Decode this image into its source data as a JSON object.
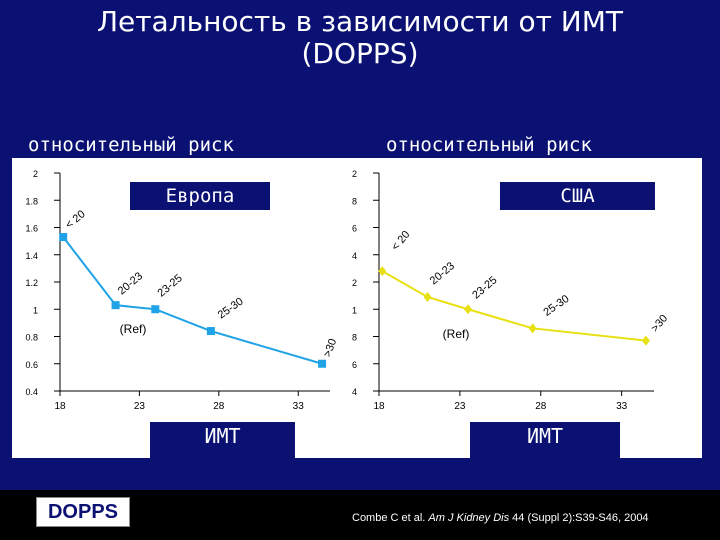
{
  "title_line1": "Летальность в зависимости от ИМТ",
  "title_line2": "(DOPPS)",
  "footer": {
    "logo": "DOPPS",
    "citation_pre": "Combe C et al. ",
    "citation_journal": "Am J Kidney Dis",
    "citation_post": " 44 (Suppl 2):S39-S46, 2004"
  },
  "chart_data": [
    {
      "type": "line",
      "region": "Европа",
      "ylabel": "относительный риск",
      "xlabel": "ИМТ",
      "ylim": [
        0.4,
        2
      ],
      "xlim": [
        18,
        35
      ],
      "x_ticks": [
        "18",
        "23",
        "28",
        "33"
      ],
      "y_ticks": [
        "0.4",
        "0.6",
        "0.8",
        "1",
        "1.2",
        "1.4",
        "1.6",
        "1.8",
        "2"
      ],
      "series": [
        {
          "color": "#1fa3e6",
          "marker": "square",
          "points": [
            {
              "x": 18.2,
              "y": 1.53,
              "label": "< 20"
            },
            {
              "x": 21.5,
              "y": 1.03,
              "label": "20-23"
            },
            {
              "x": 24.0,
              "y": 1.0,
              "label": "23-25"
            },
            {
              "x": 27.5,
              "y": 0.84,
              "label": "25-30"
            },
            {
              "x": 34.5,
              "y": 0.6,
              "label": ">30"
            }
          ]
        }
      ],
      "annotations": [
        "(Ref)"
      ]
    },
    {
      "type": "line",
      "region": "США",
      "ylabel": "относительный риск",
      "xlabel": "ИМТ",
      "ylim": [
        0.4,
        2
      ],
      "xlim": [
        18,
        35
      ],
      "x_ticks": [
        "18",
        "23",
        "28",
        "33"
      ],
      "y_ticks": [
        "0.4",
        "0.6",
        "0.8",
        "1",
        "1.2",
        "1.4",
        "1.6",
        "1.8",
        "2"
      ],
      "series": [
        {
          "color": "#e8e010",
          "marker": "diamond",
          "points": [
            {
              "x": 18.2,
              "y": 1.28,
              "label": "< 20"
            },
            {
              "x": 21.0,
              "y": 1.09,
              "label": "20-23"
            },
            {
              "x": 23.5,
              "y": 1.0,
              "label": "23-25"
            },
            {
              "x": 27.5,
              "y": 0.86,
              "label": "25-30"
            },
            {
              "x": 34.5,
              "y": 0.77,
              "label": ">30"
            }
          ]
        }
      ],
      "annotations": [
        "(Ref)"
      ]
    }
  ]
}
